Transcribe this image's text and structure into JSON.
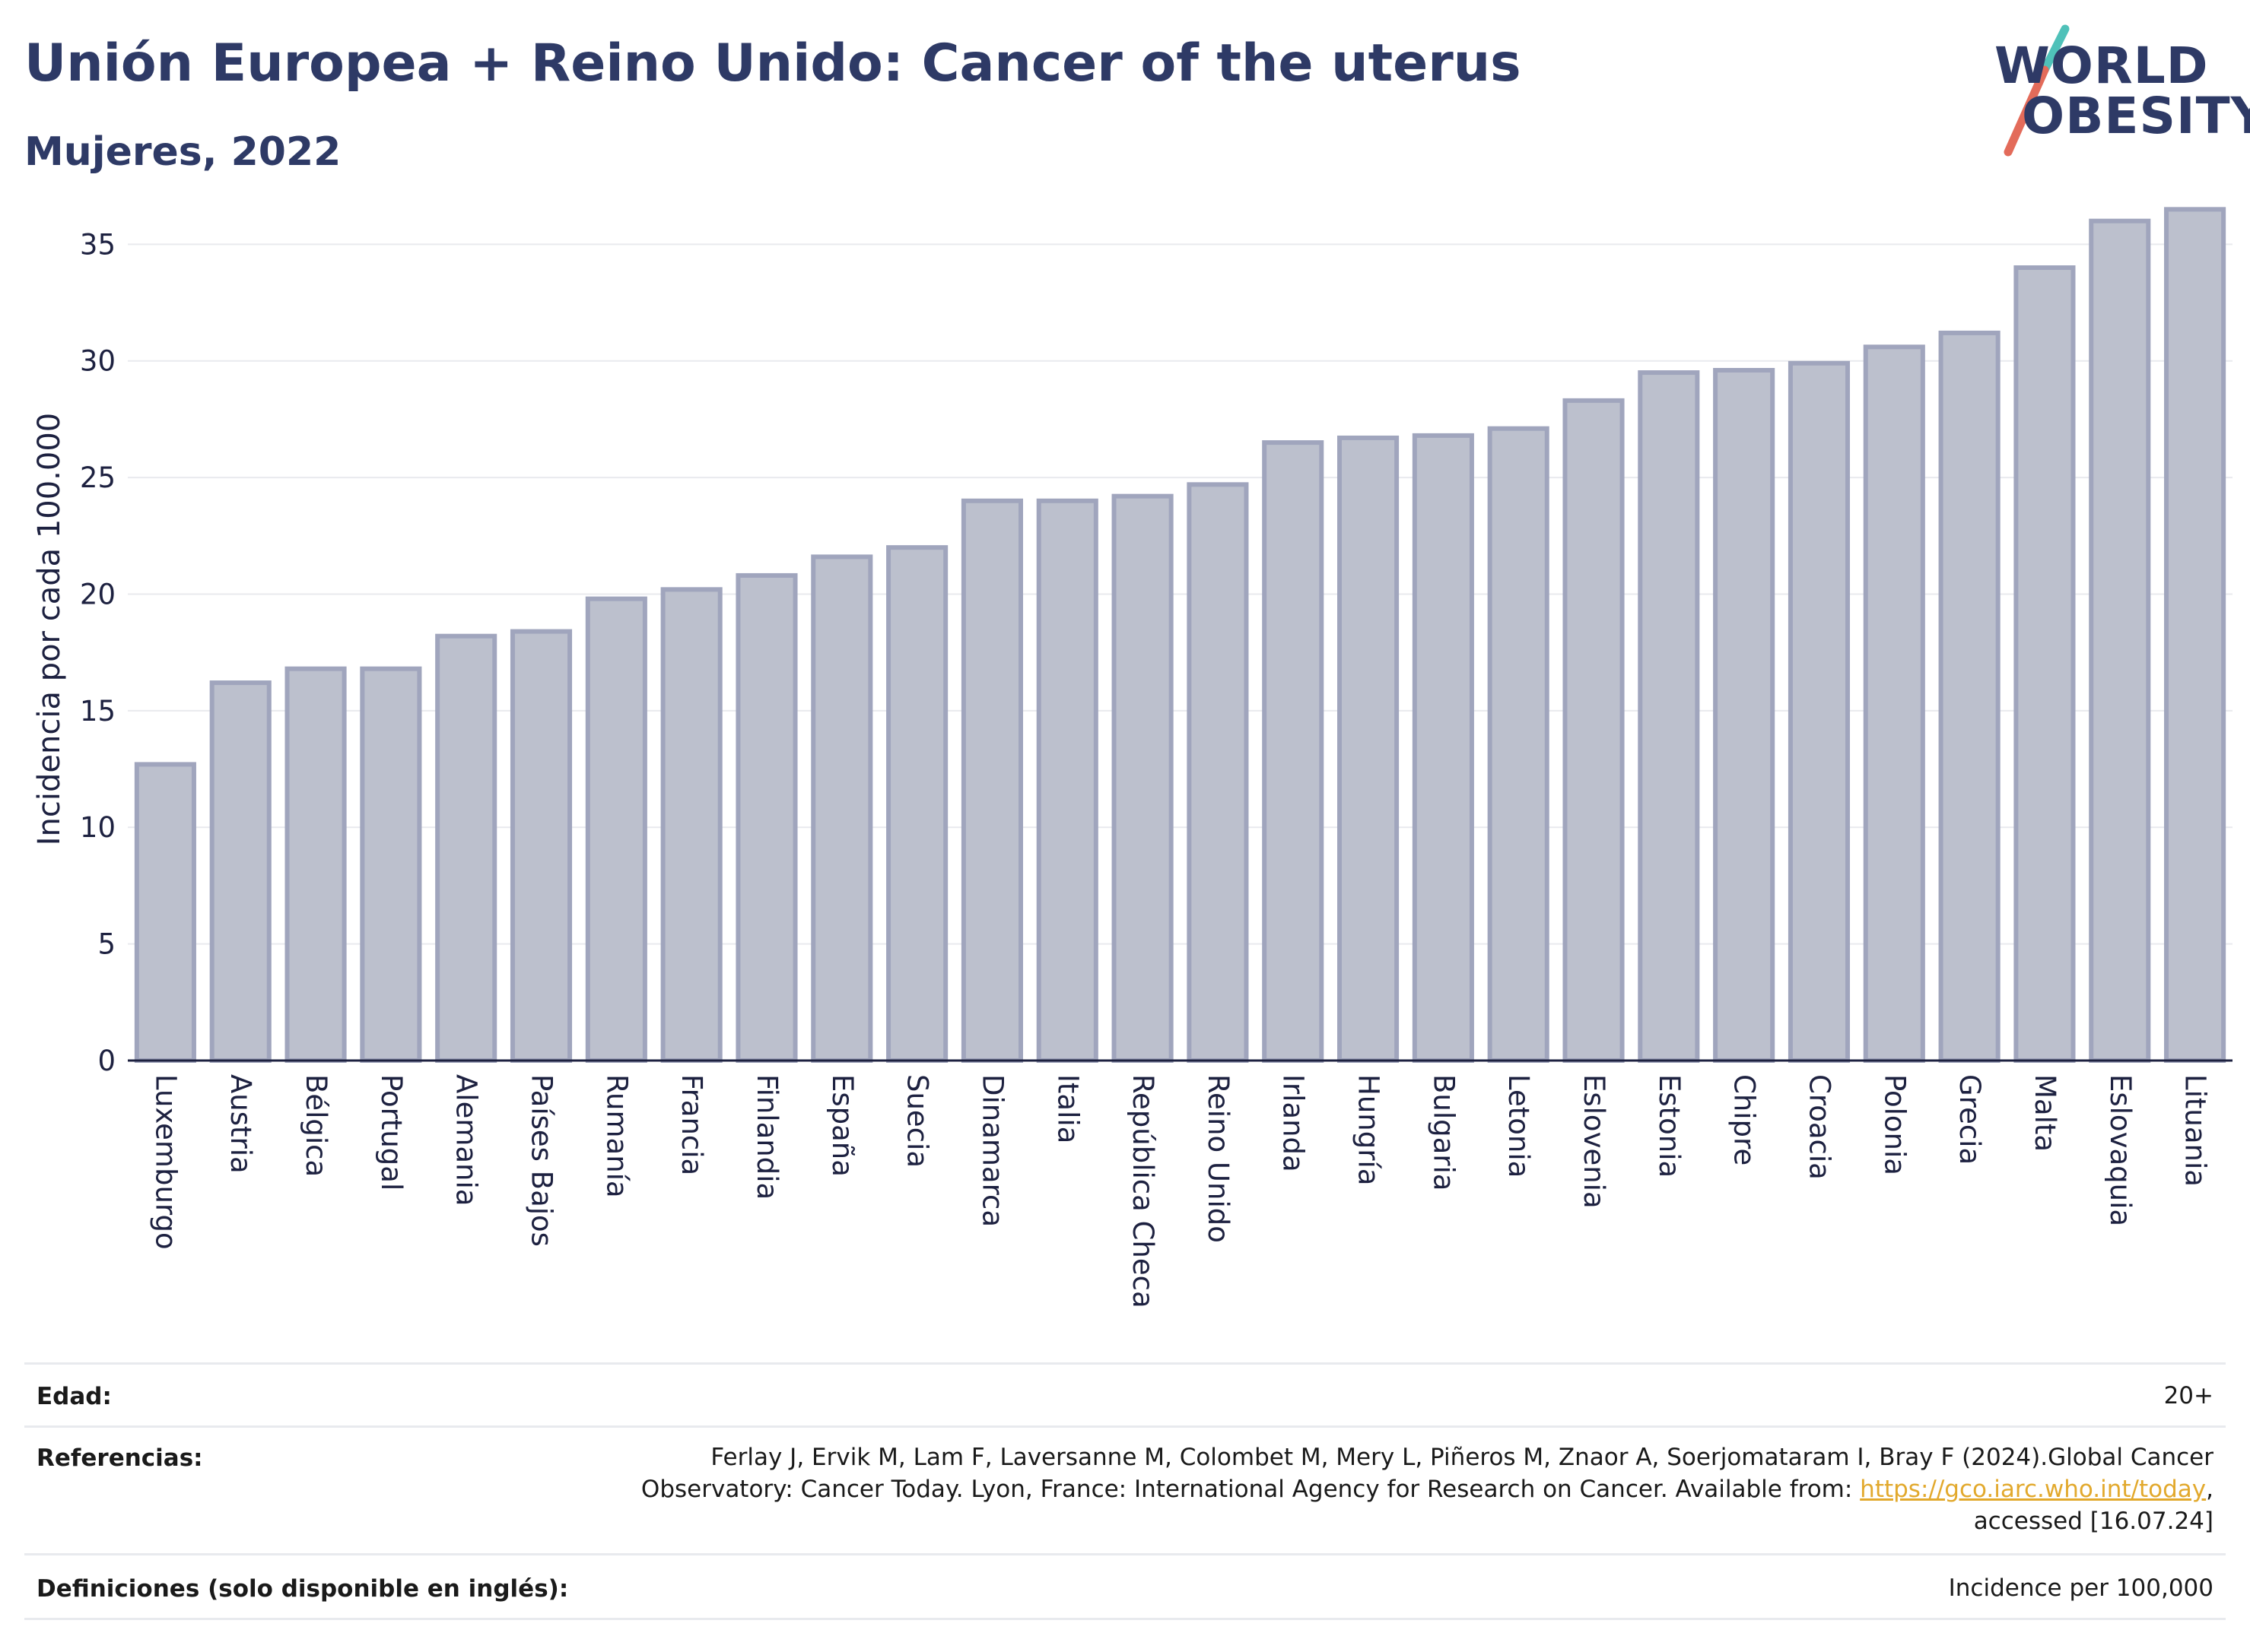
{
  "header": {
    "title": "Unión Europea + Reino Unido: Cancer of the uterus",
    "subtitle": "Mujeres, 2022"
  },
  "logo": {
    "line1": "WORLD",
    "line2": "OBESITY",
    "slash_colors": [
      "#4fc1b9",
      "#e36b5a"
    ]
  },
  "chart_data": {
    "type": "bar",
    "title": "",
    "xlabel": "",
    "ylabel": "Incidencia por cada 100.000",
    "ylim": [
      0,
      37
    ],
    "yticks": [
      0,
      5,
      10,
      15,
      20,
      25,
      30,
      35
    ],
    "grid": true,
    "bar_fill": "#bcc0cd",
    "bar_stroke": "#a0a5bd",
    "categories": [
      "Luxemburgo",
      "Austria",
      "Bélgica",
      "Portugal",
      "Alemania",
      "Países Bajos",
      "Rumanía",
      "Francia",
      "Finlandia",
      "España",
      "Suecia",
      "Dinamarca",
      "Italia",
      "República Checa",
      "Reino Unido",
      "Irlanda",
      "Hungría",
      "Bulgaria",
      "Letonia",
      "Eslovenia",
      "Estonia",
      "Chipre",
      "Croacia",
      "Polonia",
      "Grecia",
      "Malta",
      "Eslovaquia",
      "Lituania"
    ],
    "values": [
      12.7,
      16.2,
      16.8,
      16.8,
      18.2,
      18.4,
      19.8,
      20.2,
      20.8,
      21.6,
      22.0,
      24.0,
      24.0,
      24.2,
      24.7,
      26.5,
      26.7,
      26.8,
      27.1,
      28.3,
      29.5,
      29.6,
      29.9,
      30.6,
      31.2,
      34.0,
      36.0,
      36.5
    ]
  },
  "footer": {
    "age_label": "Edad:",
    "age_value": "20+",
    "references_label": "Referencias:",
    "references_line1": "Ferlay J, Ervik M, Lam F, Laversanne M, Colombet M, Mery L, Piñeros M, Znaor A, Soerjomataram I, Bray F (2024).Global Cancer",
    "references_line2_text": "Observatory: Cancer Today. Lyon, France: International Agency for Research on Cancer. Available from: ",
    "references_link": "https://gco.iarc.who.int/today",
    "references_line2_suffix": ",",
    "references_line3": "accessed [16.07.24]",
    "definitions_label": "Definiciones (solo disponible en inglés):",
    "definitions_value": "Incidence per 100,000"
  }
}
